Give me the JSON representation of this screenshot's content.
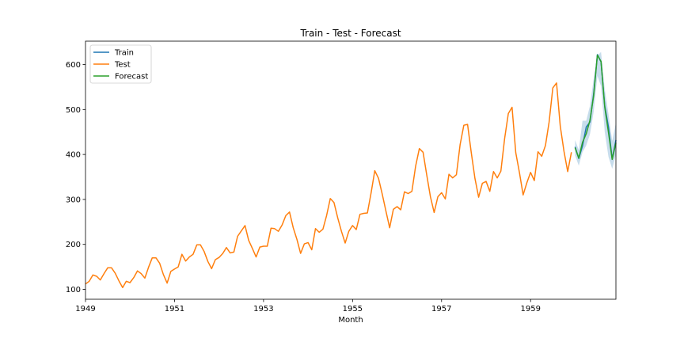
{
  "chart_data": {
    "type": "line",
    "title": "Train - Test - Forecast",
    "xlabel": "Month",
    "ylabel": "",
    "xlim": [
      1949.0,
      1960.917
    ],
    "ylim": [
      78,
      652
    ],
    "xticks": [
      1949,
      1951,
      1953,
      1955,
      1957,
      1959
    ],
    "xtick_labels": [
      "1949",
      "1951",
      "1953",
      "1955",
      "1957",
      "1959"
    ],
    "yticks": [
      100,
      200,
      300,
      400,
      500,
      600
    ],
    "ytick_labels": [
      "100",
      "200",
      "300",
      "400",
      "500",
      "600"
    ],
    "legend_position": "top-left",
    "x_start": 1949.0,
    "x_step": 0.083333,
    "series": [
      {
        "name": "Train",
        "color": "#1f77b4",
        "x_start": 1960.0,
        "values": [
          417,
          391,
          419,
          461,
          472,
          535,
          622,
          606,
          508,
          461,
          390,
          432
        ]
      },
      {
        "name": "Test",
        "color": "#ff7f0e",
        "x_start": 1949.0,
        "values": [
          112,
          118,
          132,
          129,
          121,
          135,
          148,
          148,
          136,
          119,
          104,
          118,
          115,
          126,
          141,
          135,
          125,
          149,
          170,
          170,
          158,
          133,
          114,
          140,
          145,
          150,
          178,
          163,
          172,
          178,
          199,
          199,
          184,
          162,
          146,
          166,
          171,
          180,
          193,
          181,
          183,
          218,
          230,
          242,
          209,
          191,
          172,
          194,
          196,
          196,
          236,
          235,
          229,
          243,
          264,
          272,
          237,
          211,
          180,
          201,
          204,
          188,
          235,
          227,
          234,
          264,
          302,
          293,
          259,
          229,
          203,
          229,
          242,
          233,
          267,
          269,
          270,
          315,
          364,
          347,
          312,
          274,
          237,
          278,
          284,
          277,
          317,
          313,
          318,
          374,
          413,
          405,
          355,
          306,
          271,
          306,
          315,
          301,
          356,
          348,
          355,
          422,
          465,
          467,
          404,
          347,
          305,
          336,
          340,
          318,
          362,
          348,
          363,
          435,
          491,
          505,
          404,
          359,
          310,
          337,
          360,
          342,
          406,
          396,
          420,
          472,
          548,
          559,
          463,
          407,
          362,
          405
        ]
      },
      {
        "name": "Forecast",
        "color": "#2ca02c",
        "x_start": 1960.0,
        "values": [
          415,
          392,
          427,
          446,
          476,
          531,
          621,
          607,
          505,
          449,
          389,
          426
        ],
        "ci_lower": [
          398,
          375,
          405,
          420,
          445,
          495,
          575,
          552,
          450,
          395,
          368,
          400
        ],
        "ci_upper": [
          432,
          410,
          475,
          475,
          508,
          568,
          620,
          628,
          545,
          490,
          430,
          470
        ],
        "ci_color": "#1f77b4"
      }
    ]
  }
}
